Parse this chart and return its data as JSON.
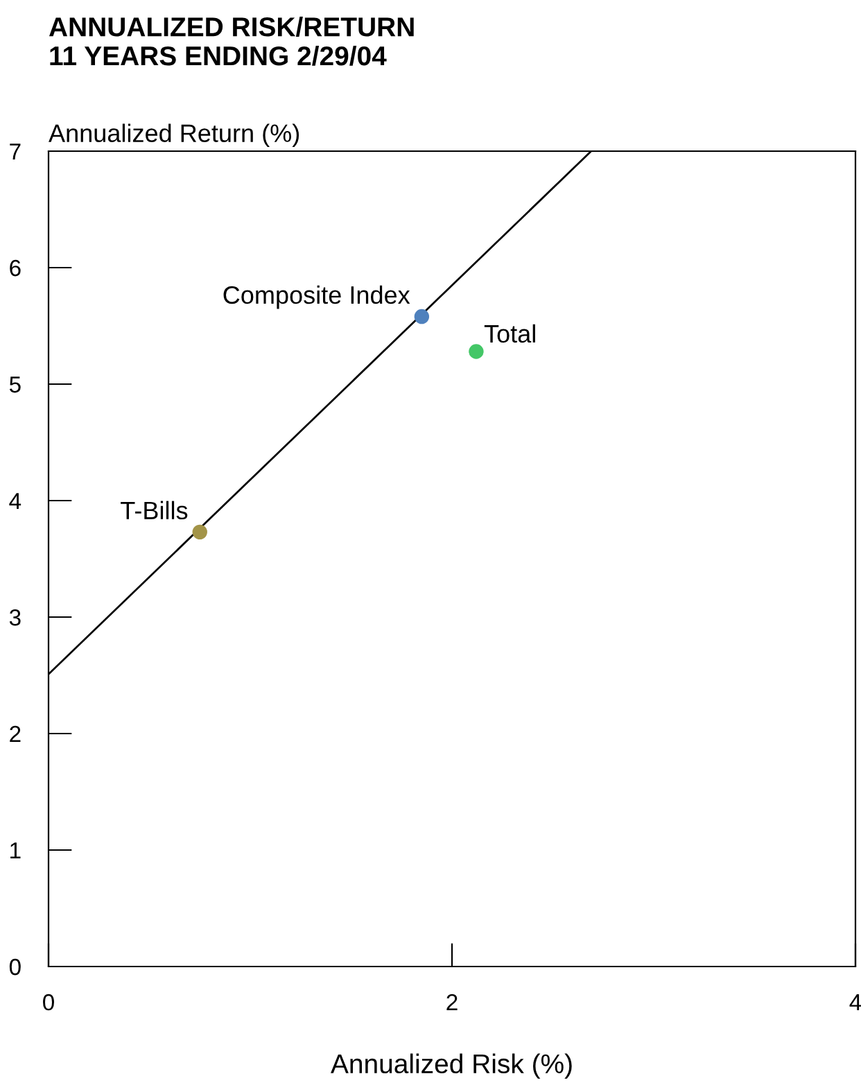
{
  "chart_data": {
    "type": "scatter",
    "title": "ANNUALIZED RISK/RETURN\n11 YEARS ENDING 2/29/04",
    "xlabel": "Annualized Risk (%)",
    "ylabel": "Annualized Return (%)",
    "xlim": [
      0,
      4
    ],
    "xticks": [
      0,
      2,
      4
    ],
    "ylim": [
      0,
      7
    ],
    "yticks": [
      0,
      1,
      2,
      3,
      4,
      5,
      6,
      7
    ],
    "grid": false,
    "legend": false,
    "series": [
      {
        "type": "line",
        "color": "#000000",
        "marker": "none",
        "x": [
          0,
          2.69
        ],
        "values": [
          2.51,
          7
        ]
      },
      {
        "name": "Composite Index",
        "color": "#4f81bd",
        "marker": "circle",
        "x": [
          1.85
        ],
        "values": [
          5.58
        ]
      },
      {
        "name": "Total",
        "color": "#44c767",
        "marker": "circle",
        "x": [
          2.12
        ],
        "values": [
          5.28
        ]
      },
      {
        "name": "T-Bills",
        "color": "#a39448",
        "marker": "circle",
        "x": [
          0.75
        ],
        "values": [
          3.73
        ]
      }
    ]
  }
}
